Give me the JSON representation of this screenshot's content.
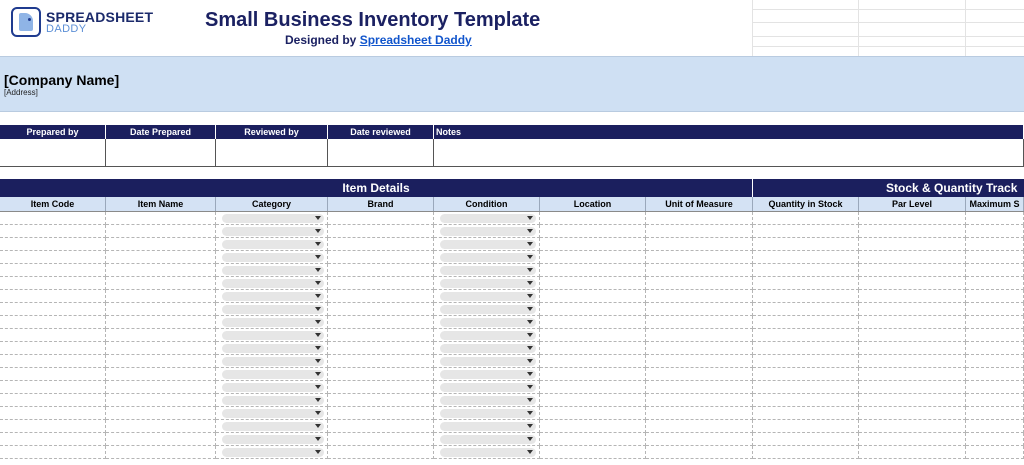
{
  "logo": {
    "line1": "SPREADSHEET",
    "line2": "DADDY"
  },
  "header": {
    "title": "Small Business Inventory Template",
    "subtitle_prefix": "Designed by ",
    "subtitle_link": "Spreadsheet Daddy"
  },
  "company": {
    "name": "[Company Name]",
    "address": "[Address]"
  },
  "meta_headers": [
    "Prepared by",
    "Date Prepared",
    "Reviewed by",
    "Date reviewed",
    "Notes"
  ],
  "groups": [
    "Item Details",
    "Stock & Quantity Track"
  ],
  "columns": [
    "Item Code",
    "Item Name",
    "Category",
    "Brand",
    "Condition",
    "Location",
    "Unit of Measure",
    "Quantity in Stock",
    "Par Level",
    "Maximum S"
  ],
  "dropdown_columns": [
    "Category",
    "Condition"
  ],
  "colors": {
    "navy": "#1b1f5e",
    "band": "#cfe0f3",
    "colhead_bg": "#d4e2f4",
    "link": "#1155cc"
  },
  "data_row_count": 19
}
